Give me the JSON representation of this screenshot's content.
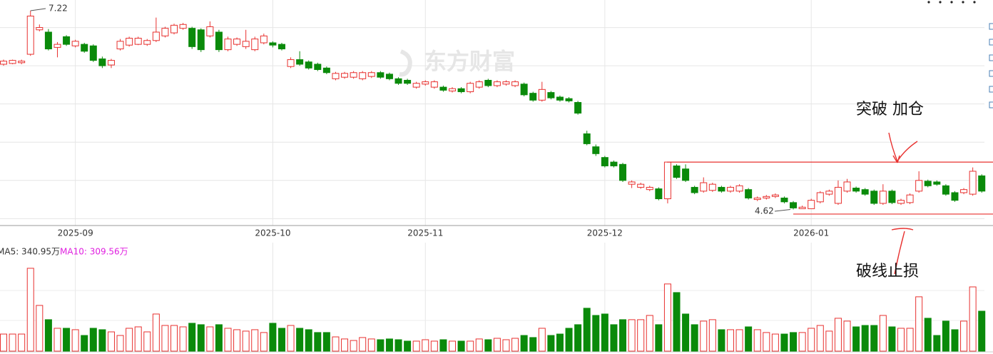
{
  "chart_data": [
    {
      "type": "candlestick",
      "categories": [
        null,
        null,
        null,
        null,
        null,
        null,
        null,
        null,
        "2025-09",
        null,
        null,
        null,
        null,
        null,
        null,
        null,
        null,
        null,
        null,
        null,
        null,
        null,
        null,
        null,
        null,
        null,
        null,
        null,
        null,
        null,
        "2025-10",
        null,
        null,
        null,
        null,
        null,
        null,
        null,
        null,
        null,
        null,
        null,
        null,
        null,
        null,
        null,
        null,
        "2025-11",
        null,
        null,
        null,
        null,
        null,
        null,
        null,
        null,
        null,
        null,
        null,
        null,
        null,
        null,
        null,
        null,
        null,
        null,
        null,
        "2025-12",
        null,
        null,
        null,
        null,
        null,
        null,
        null,
        null,
        null,
        null,
        null,
        null,
        null,
        null,
        null,
        null,
        null,
        null,
        null,
        null,
        null,
        null,
        "2026-01",
        null,
        null,
        null,
        null,
        null,
        null,
        null,
        null,
        null,
        null,
        null,
        null,
        null,
        null,
        null,
        null,
        null,
        null,
        null
      ],
      "open": [
        6.52,
        6.53,
        6.54,
        6.65,
        6.97,
        6.94,
        6.74,
        6.88,
        6.76,
        6.78,
        6.76,
        6.59,
        6.51,
        6.72,
        6.77,
        6.78,
        6.78,
        6.83,
        6.89,
        6.93,
        6.99,
        6.99,
        6.97,
        6.89,
        6.94,
        6.71,
        6.78,
        6.75,
        6.71,
        6.8,
        6.8,
        6.78,
        6.49,
        6.58,
        6.55,
        6.52,
        6.47,
        6.33,
        6.35,
        6.35,
        6.33,
        6.36,
        6.41,
        6.39,
        6.33,
        6.31,
        6.22,
        6.26,
        6.22,
        6.22,
        6.17,
        6.2,
        6.16,
        6.22,
        6.31,
        6.24,
        6.26,
        6.24,
        6.26,
        6.14,
        6.05,
        6.15,
        6.09,
        6.07,
        6.02,
        5.61,
        5.44,
        5.3,
        5.24,
        5.21,
        4.95,
        4.91,
        4.88,
        4.89,
        4.76,
        5.19,
        5.15,
        4.91,
        4.86,
        4.87,
        4.91,
        4.86,
        4.86,
        4.88,
        4.75,
        4.77,
        4.79,
        4.77,
        4.71,
        4.63,
        4.63,
        4.72,
        4.82,
        4.7,
        4.86,
        4.9,
        4.88,
        4.86,
        4.7,
        4.86,
        4.7,
        4.71,
        4.86,
        4.99,
        4.98,
        4.93,
        4.84,
        4.84,
        4.82,
        5.06
      ],
      "high": [
        6.58,
        6.58,
        6.58,
        7.22,
        7.04,
        6.98,
        6.81,
        6.9,
        6.84,
        6.8,
        6.78,
        6.62,
        6.59,
        6.85,
        6.88,
        6.88,
        6.85,
        7.13,
        7.01,
        7.05,
        7.06,
        7.01,
        6.99,
        7.08,
        6.97,
        6.88,
        6.87,
        6.97,
        6.88,
        6.92,
        6.82,
        6.8,
        6.61,
        6.69,
        6.57,
        6.54,
        6.49,
        6.42,
        6.42,
        6.43,
        6.43,
        6.43,
        6.43,
        6.41,
        6.35,
        6.33,
        6.29,
        6.31,
        6.31,
        6.24,
        6.22,
        6.22,
        6.29,
        6.31,
        6.33,
        6.31,
        6.31,
        6.31,
        6.28,
        6.16,
        6.29,
        6.17,
        6.11,
        6.09,
        6.04,
        5.65,
        5.47,
        5.32,
        5.26,
        5.23,
        5.0,
        4.97,
        4.93,
        4.91,
        5.24,
        5.21,
        5.21,
        4.93,
        5.04,
        4.97,
        4.93,
        4.93,
        4.95,
        4.9,
        4.79,
        4.81,
        4.83,
        4.79,
        4.73,
        4.67,
        4.76,
        4.86,
        4.88,
        5.0,
        5.02,
        4.92,
        4.9,
        4.88,
        4.95,
        4.88,
        4.76,
        4.83,
        5.12,
        5.01,
        5.0,
        4.95,
        4.86,
        4.9,
        5.17,
        5.08
      ],
      "low": [
        6.5,
        6.52,
        6.52,
        6.63,
        6.95,
        6.7,
        6.61,
        6.76,
        6.74,
        6.67,
        6.55,
        6.47,
        6.47,
        6.7,
        6.75,
        6.77,
        6.76,
        6.81,
        6.87,
        6.91,
        6.97,
        6.72,
        6.68,
        6.87,
        6.68,
        6.69,
        6.76,
        6.72,
        6.69,
        6.78,
        6.74,
        6.7,
        6.47,
        6.5,
        6.45,
        6.43,
        6.39,
        6.31,
        6.33,
        6.33,
        6.31,
        6.34,
        6.33,
        6.31,
        6.25,
        6.25,
        6.2,
        6.24,
        6.2,
        6.16,
        6.15,
        6.14,
        6.14,
        6.2,
        6.22,
        6.22,
        6.24,
        6.22,
        6.1,
        6.03,
        6.03,
        6.06,
        6.03,
        6.02,
        5.86,
        5.46,
        5.32,
        5.17,
        5.17,
        4.98,
        4.9,
        4.89,
        4.86,
        4.74,
        4.7,
        5.02,
        4.98,
        4.82,
        4.84,
        4.85,
        4.84,
        4.84,
        4.84,
        4.75,
        4.73,
        4.75,
        4.77,
        4.7,
        4.62,
        4.63,
        4.63,
        4.7,
        4.8,
        4.68,
        4.84,
        4.84,
        4.8,
        4.68,
        4.68,
        4.69,
        4.68,
        4.69,
        4.84,
        4.91,
        4.93,
        4.8,
        4.72,
        4.82,
        4.8,
        4.84
      ],
      "close": [
        6.56,
        6.57,
        6.56,
        7.15,
        7.0,
        6.72,
        6.78,
        6.78,
        6.82,
        6.69,
        6.57,
        6.5,
        6.57,
        6.82,
        6.86,
        6.86,
        6.83,
        6.94,
        6.99,
        7.03,
        7.04,
        6.75,
        6.71,
        7.01,
        6.71,
        6.85,
        6.85,
        6.82,
        6.85,
        6.89,
        6.77,
        6.72,
        6.58,
        6.52,
        6.47,
        6.45,
        6.41,
        6.4,
        6.4,
        6.41,
        6.41,
        6.41,
        6.35,
        6.33,
        6.27,
        6.27,
        6.27,
        6.29,
        6.29,
        6.18,
        6.2,
        6.16,
        6.27,
        6.29,
        6.24,
        6.29,
        6.29,
        6.29,
        6.12,
        6.05,
        6.19,
        6.08,
        6.05,
        6.04,
        5.88,
        5.48,
        5.35,
        5.19,
        5.19,
        5.0,
        4.98,
        4.95,
        4.91,
        4.76,
        5.24,
        5.04,
        5.0,
        4.84,
        4.97,
        4.95,
        4.86,
        4.91,
        4.93,
        4.77,
        4.77,
        4.79,
        4.81,
        4.72,
        4.64,
        4.65,
        4.74,
        4.84,
        4.86,
        4.91,
        4.98,
        4.86,
        4.82,
        4.7,
        4.86,
        4.71,
        4.74,
        4.81,
        5.0,
        4.93,
        4.95,
        4.82,
        4.74,
        4.88,
        5.12,
        4.86
      ],
      "up_color": "#e8312f",
      "down_color": "#0a8a0a",
      "ylim": [
        4.41,
        7.36
      ],
      "yticks": [
        4.5,
        5,
        5.5,
        6,
        6.5,
        7
      ],
      "grid": true,
      "levels": [
        5.24,
        4.56
      ],
      "level_color": "#e8312f",
      "annotations": [
        "突破 加仓",
        "破线止损"
      ],
      "watermark": "东方财富"
    },
    {
      "type": "bar",
      "values": [
        157,
        157,
        157,
        761,
        420,
        289,
        210,
        210,
        197,
        144,
        210,
        197,
        177,
        144,
        210,
        223,
        177,
        341,
        236,
        236,
        223,
        256,
        243,
        223,
        243,
        210,
        197,
        184,
        197,
        171,
        256,
        210,
        236,
        210,
        197,
        171,
        171,
        131,
        112,
        98,
        125,
        112,
        105,
        112,
        105,
        92,
        92,
        105,
        92,
        105,
        92,
        92,
        92,
        112,
        105,
        118,
        105,
        118,
        144,
        125,
        210,
        144,
        157,
        210,
        243,
        394,
        328,
        341,
        243,
        289,
        289,
        289,
        328,
        243,
        617,
        538,
        341,
        243,
        276,
        289,
        197,
        197,
        197,
        223,
        197,
        171,
        157,
        157,
        171,
        171,
        210,
        236,
        184,
        302,
        276,
        223,
        236,
        236,
        328,
        223,
        210,
        210,
        499,
        302,
        144,
        276,
        197,
        276,
        590,
        367
      ],
      "ylim": [
        0,
        970
      ],
      "legend": [
        "MA5: 340.95万",
        "MA10: 309.56万"
      ],
      "legend_colors": [
        "#333333",
        "#e020e0"
      ]
    }
  ]
}
